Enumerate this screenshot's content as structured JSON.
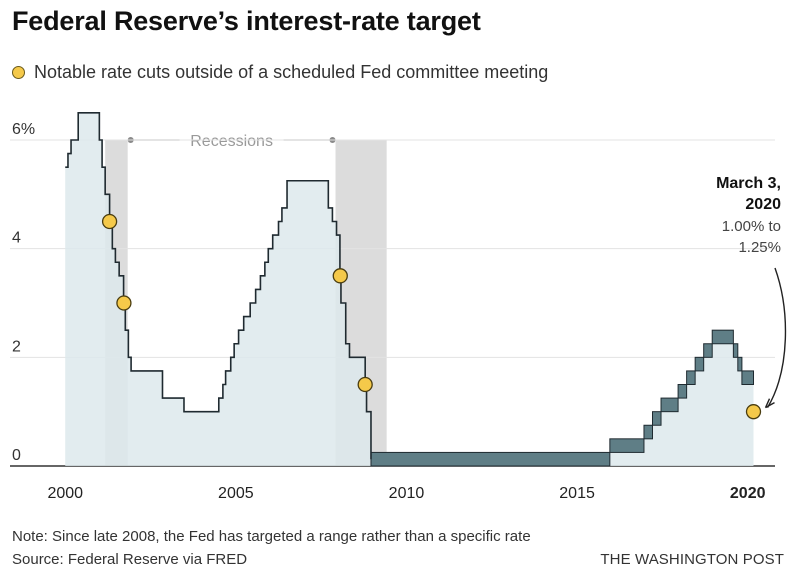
{
  "title": "Federal Reserve’s interest-rate target",
  "legend": {
    "label": "Notable rate cuts outside of a scheduled Fed committee meeting",
    "dot_color": "#f5c94a"
  },
  "footer": {
    "note": "Note: Since late 2008, the Fed has targeted a range rather than a specific rate",
    "source": "Source: Federal Reserve via FRED",
    "credit": "THE WASHINGTON POST"
  },
  "chart_data": {
    "type": "area",
    "title": "",
    "xlabel": "",
    "ylabel": "",
    "xlim": [
      1999.7,
      2020.8
    ],
    "ylim": [
      0,
      6
    ],
    "y_ticks": [
      {
        "value": 0,
        "label": "0"
      },
      {
        "value": 2,
        "label": "2"
      },
      {
        "value": 4,
        "label": "4"
      },
      {
        "value": 6,
        "label": "6%"
      }
    ],
    "x_ticks": [
      {
        "value": 2000,
        "label": "2000",
        "bold": false
      },
      {
        "value": 2005,
        "label": "2005",
        "bold": false
      },
      {
        "value": 2010,
        "label": "2010",
        "bold": false
      },
      {
        "value": 2015,
        "label": "2015",
        "bold": false
      },
      {
        "value": 2020,
        "label": "2020",
        "bold": true
      }
    ],
    "colors": {
      "area": "#dde9ec",
      "line": "#1f2a30",
      "band": "#5f7e86",
      "recession": "#dcdcdc",
      "point": "#f5c94a"
    },
    "recessions": {
      "label": "Recessions",
      "periods": [
        [
          2001.17,
          2001.83
        ],
        [
          2007.92,
          2009.42
        ]
      ]
    },
    "target_rate": [
      [
        2000.0,
        5.5
      ],
      [
        2000.08,
        5.75
      ],
      [
        2000.17,
        6.0
      ],
      [
        2000.38,
        6.5
      ],
      [
        2001.0,
        6.0
      ],
      [
        2001.08,
        5.5
      ],
      [
        2001.17,
        5.0
      ],
      [
        2001.3,
        4.5
      ],
      [
        2001.38,
        4.0
      ],
      [
        2001.47,
        3.75
      ],
      [
        2001.58,
        3.5
      ],
      [
        2001.71,
        3.0
      ],
      [
        2001.76,
        2.5
      ],
      [
        2001.85,
        2.0
      ],
      [
        2001.93,
        1.75
      ],
      [
        2002.85,
        1.25
      ],
      [
        2003.48,
        1.0
      ],
      [
        2004.5,
        1.25
      ],
      [
        2004.62,
        1.5
      ],
      [
        2004.7,
        1.75
      ],
      [
        2004.85,
        2.0
      ],
      [
        2004.95,
        2.25
      ],
      [
        2005.08,
        2.5
      ],
      [
        2005.23,
        2.75
      ],
      [
        2005.42,
        3.0
      ],
      [
        2005.58,
        3.25
      ],
      [
        2005.72,
        3.5
      ],
      [
        2005.85,
        3.75
      ],
      [
        2005.95,
        4.0
      ],
      [
        2006.08,
        4.25
      ],
      [
        2006.25,
        4.5
      ],
      [
        2006.35,
        4.75
      ],
      [
        2006.5,
        5.25
      ],
      [
        2007.71,
        4.75
      ],
      [
        2007.83,
        4.5
      ],
      [
        2007.95,
        4.25
      ],
      [
        2008.05,
        3.5
      ],
      [
        2008.08,
        3.0
      ],
      [
        2008.22,
        2.25
      ],
      [
        2008.33,
        2.0
      ],
      [
        2008.79,
        1.5
      ],
      [
        2008.83,
        1.0
      ],
      [
        2008.96,
        0.125
      ],
      [
        2015.96,
        0.375
      ],
      [
        2016.96,
        0.625
      ],
      [
        2017.21,
        0.875
      ],
      [
        2017.46,
        1.125
      ],
      [
        2017.96,
        1.375
      ],
      [
        2018.21,
        1.625
      ],
      [
        2018.46,
        1.875
      ],
      [
        2018.71,
        2.125
      ],
      [
        2018.96,
        2.375
      ],
      [
        2019.58,
        2.125
      ],
      [
        2019.71,
        1.875
      ],
      [
        2019.83,
        1.625
      ],
      [
        2020.0,
        1.625
      ],
      [
        2020.17,
        1.625
      ]
    ],
    "target_range": [
      {
        "from": 2008.96,
        "to": 2015.96,
        "lower": 0.0,
        "upper": 0.25
      },
      {
        "from": 2015.96,
        "to": 2016.96,
        "lower": 0.25,
        "upper": 0.5
      },
      {
        "from": 2016.96,
        "to": 2017.21,
        "lower": 0.5,
        "upper": 0.75
      },
      {
        "from": 2017.21,
        "to": 2017.46,
        "lower": 0.75,
        "upper": 1.0
      },
      {
        "from": 2017.46,
        "to": 2017.96,
        "lower": 1.0,
        "upper": 1.25
      },
      {
        "from": 2017.96,
        "to": 2018.21,
        "lower": 1.25,
        "upper": 1.5
      },
      {
        "from": 2018.21,
        "to": 2018.46,
        "lower": 1.5,
        "upper": 1.75
      },
      {
        "from": 2018.46,
        "to": 2018.71,
        "lower": 1.75,
        "upper": 2.0
      },
      {
        "from": 2018.71,
        "to": 2018.96,
        "lower": 2.0,
        "upper": 2.25
      },
      {
        "from": 2018.96,
        "to": 2019.58,
        "lower": 2.25,
        "upper": 2.5
      },
      {
        "from": 2019.58,
        "to": 2019.71,
        "lower": 2.0,
        "upper": 2.25
      },
      {
        "from": 2019.71,
        "to": 2019.83,
        "lower": 1.75,
        "upper": 2.0
      },
      {
        "from": 2019.83,
        "to": 2020.17,
        "lower": 1.5,
        "upper": 1.75
      }
    ],
    "emergency_cuts": [
      {
        "x": 2001.3,
        "y": 4.5
      },
      {
        "x": 2001.72,
        "y": 3.0
      },
      {
        "x": 2008.06,
        "y": 3.5
      },
      {
        "x": 2008.79,
        "y": 1.5
      },
      {
        "x": 2020.17,
        "y": 1.0
      }
    ],
    "annotation": {
      "x": 2020.17,
      "y": 1.0,
      "date_line1": "March 3,",
      "date_line2": "2020",
      "detail_line1": "1.00% to",
      "detail_line2": "1.25%"
    }
  }
}
